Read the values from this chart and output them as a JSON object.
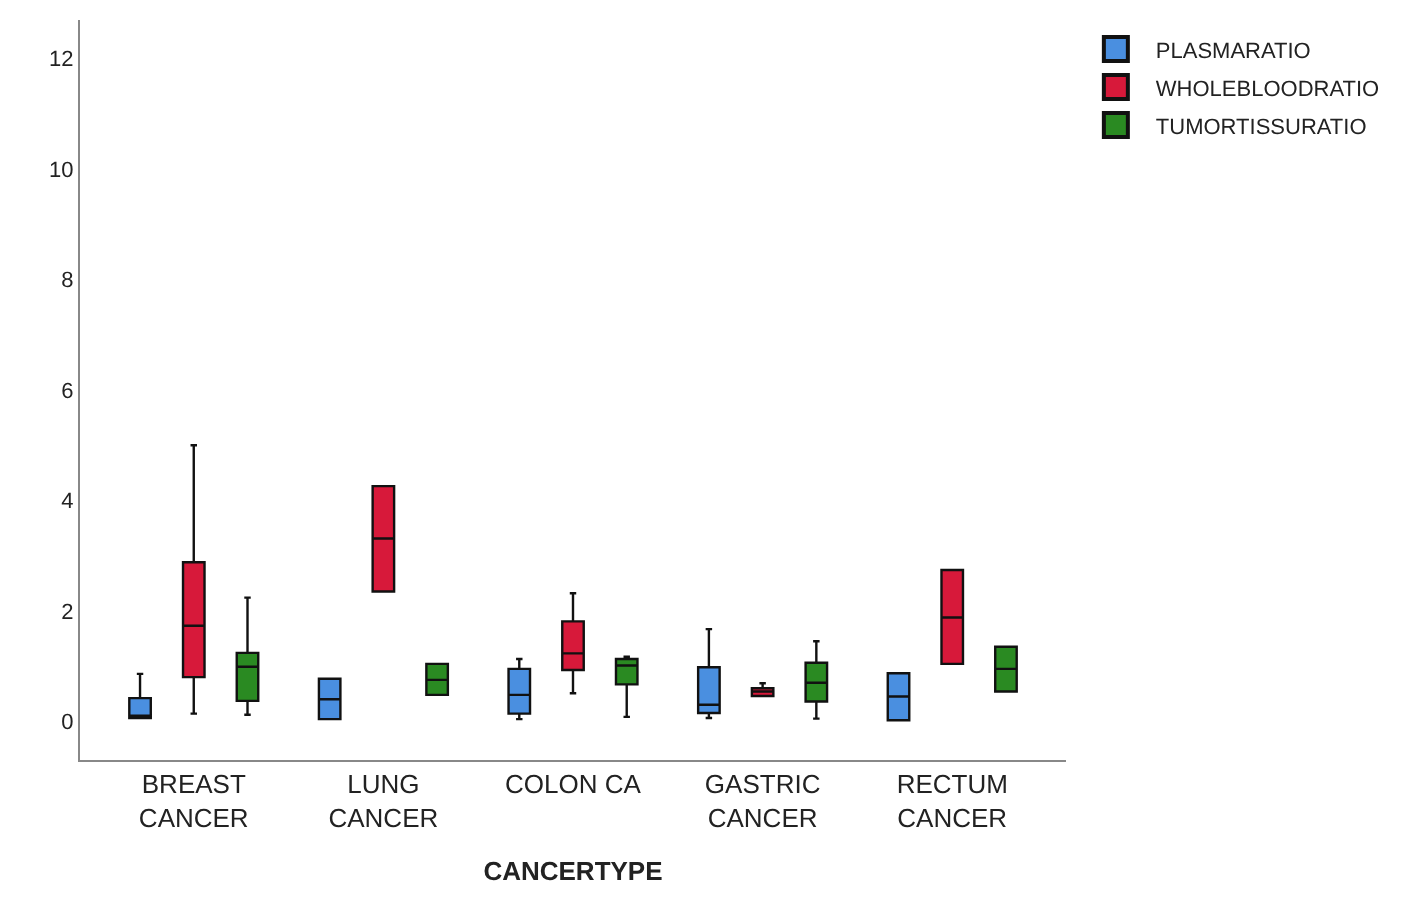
{
  "chart_data": {
    "type": "box",
    "xlabel": "CANCERTYPE",
    "categories": [
      "BREAST\nCANCER",
      "LUNG\nCANCER",
      "COLON CA",
      "GASTRIC\nCANCER",
      "RECTUM\nCANCER"
    ],
    "ylim": [
      -0.7,
      12.7
    ],
    "yticks": [
      0,
      2,
      4,
      6,
      8,
      10,
      12
    ],
    "legend": "top right",
    "series": [
      {
        "name": "PLASMARATIO",
        "color": "#4a8fe0",
        "boxes": [
          {
            "low": 0.06,
            "q1": 0.06,
            "median": 0.1,
            "q3": 0.42,
            "high": 0.86
          },
          {
            "low": 0.04,
            "q1": 0.04,
            "median": 0.4,
            "q3": 0.77,
            "high": 0.77
          },
          {
            "low": 0.04,
            "q1": 0.14,
            "median": 0.48,
            "q3": 0.95,
            "high": 1.13
          },
          {
            "low": 0.06,
            "q1": 0.15,
            "median": 0.3,
            "q3": 0.98,
            "high": 1.67
          },
          {
            "low": 0.02,
            "q1": 0.02,
            "median": 0.45,
            "q3": 0.87,
            "high": 0.87
          }
        ]
      },
      {
        "name": "WHOLEBLOODRATIO",
        "color": "#d7193a",
        "boxes": [
          {
            "low": 0.14,
            "q1": 0.8,
            "median": 1.73,
            "q3": 2.88,
            "high": 5.0
          },
          {
            "low": 2.35,
            "q1": 2.35,
            "median": 3.31,
            "q3": 4.26,
            "high": 4.26
          },
          {
            "low": 0.51,
            "q1": 0.93,
            "median": 1.23,
            "q3": 1.81,
            "high": 2.32
          },
          {
            "low": 0.46,
            "q1": 0.46,
            "median": 0.54,
            "q3": 0.6,
            "high": 0.69
          },
          {
            "low": 1.04,
            "q1": 1.04,
            "median": 1.88,
            "q3": 2.74,
            "high": 2.74
          }
        ]
      },
      {
        "name": "TUMORTISSURATIO",
        "color": "#2a8a22",
        "boxes": [
          {
            "low": 0.12,
            "q1": 0.37,
            "median": 0.99,
            "q3": 1.24,
            "high": 2.24
          },
          {
            "low": 0.48,
            "q1": 0.48,
            "median": 0.75,
            "q3": 1.04,
            "high": 1.04
          },
          {
            "low": 0.08,
            "q1": 0.67,
            "median": 1.01,
            "q3": 1.13,
            "high": 1.17
          },
          {
            "low": 0.05,
            "q1": 0.36,
            "median": 0.7,
            "q3": 1.06,
            "high": 1.45
          },
          {
            "low": 0.54,
            "q1": 0.54,
            "median": 0.95,
            "q3": 1.35,
            "high": 1.35
          }
        ]
      }
    ]
  }
}
